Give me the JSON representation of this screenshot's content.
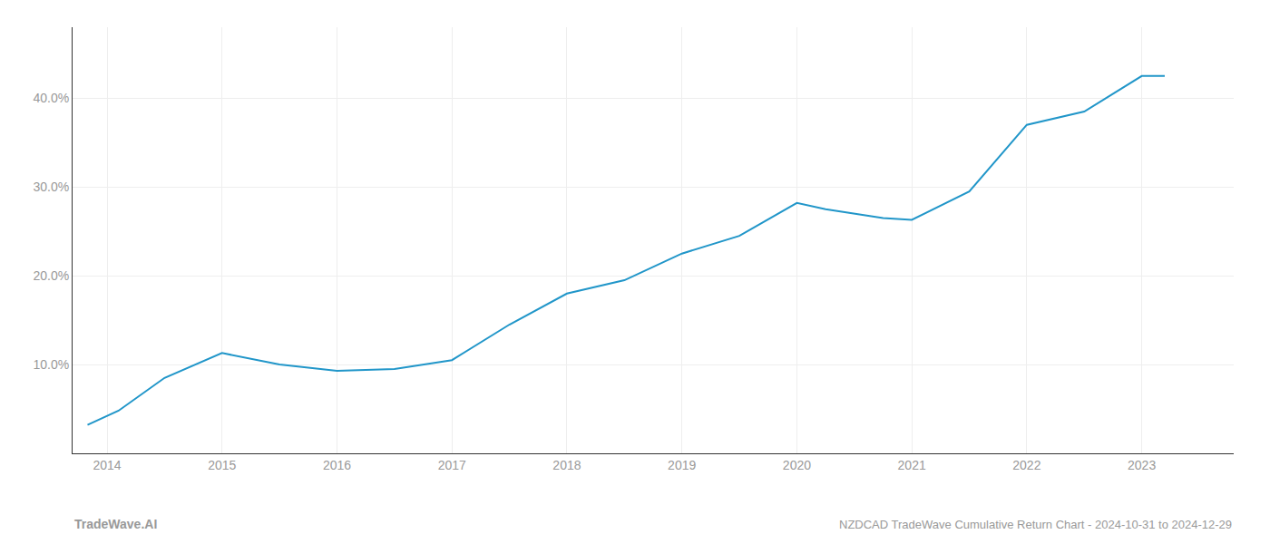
{
  "chart_data": {
    "type": "line",
    "title": "NZDCAD TradeWave Cumulative Return Chart - 2024-10-31 to 2024-12-29",
    "annotations": [
      "TradeWave.AI"
    ],
    "x": [
      2013.83,
      2014.1,
      2014.5,
      2015.0,
      2015.5,
      2016.0,
      2016.5,
      2017.0,
      2017.5,
      2018.0,
      2018.5,
      2019.0,
      2019.5,
      2020.0,
      2020.25,
      2020.75,
      2021.0,
      2021.5,
      2022.0,
      2022.5,
      2023.0,
      2023.2
    ],
    "values": [
      3.2,
      4.8,
      8.5,
      11.3,
      10.0,
      9.3,
      9.5,
      10.5,
      14.5,
      18.0,
      19.5,
      22.5,
      24.5,
      28.2,
      27.5,
      26.5,
      26.3,
      29.5,
      37.0,
      38.5,
      42.5,
      42.5
    ],
    "color": "#2196C9",
    "xlim": [
      2013.7,
      2023.8
    ],
    "xticks": [
      2014,
      2015,
      2016,
      2017,
      2018,
      2019,
      2020,
      2021,
      2022,
      2023
    ],
    "ylim": [
      0,
      48
    ],
    "yticks": [
      {
        "value": 10,
        "label": "10.0%"
      },
      {
        "value": 20,
        "label": "20.0%"
      },
      {
        "value": 30,
        "label": "30.0%"
      },
      {
        "value": 40,
        "label": "40.0%"
      }
    ],
    "grid": true
  }
}
